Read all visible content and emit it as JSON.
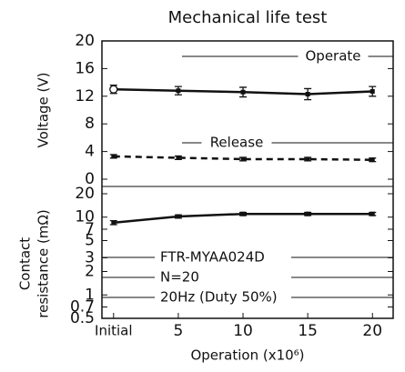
{
  "chart_data": [
    {
      "type": "line",
      "title": "Mechanical life test",
      "y_label": [
        "Voltage (V)"
      ],
      "x": [
        0,
        5,
        10,
        15,
        20
      ],
      "xlim": [
        -0.9,
        21.6
      ],
      "ylim": [
        0,
        20
      ],
      "yticks": [
        20,
        16,
        12,
        8,
        4,
        0
      ],
      "series": [
        {
          "name": "Operate",
          "color": "#111111",
          "dash": false,
          "values": [
            13.0,
            12.8,
            12.6,
            12.3,
            12.7
          ],
          "errors": [
            0.6,
            0.6,
            0.7,
            0.8,
            0.7
          ]
        },
        {
          "name": "Release",
          "color": "#111111",
          "dash": true,
          "values": [
            3.3,
            3.1,
            2.9,
            2.9,
            2.8
          ],
          "errors": [
            0.25,
            0.25,
            0.25,
            0.25,
            0.25
          ]
        }
      ]
    },
    {
      "type": "line",
      "y_label": [
        "Contact",
        "resistance (mΩ)"
      ],
      "x_label": "Operation (x10⁶)",
      "x": [
        0,
        5,
        10,
        15,
        20
      ],
      "xlim": [
        -0.9,
        21.6
      ],
      "xticks": [
        {
          "value": 0,
          "label": "Initial"
        },
        5,
        10,
        15,
        20
      ],
      "log_scale": true,
      "ylim": [
        0.5,
        20
      ],
      "yticks": [
        20,
        10,
        7,
        5,
        3,
        2,
        1,
        0.7,
        0.5
      ],
      "annotations": [
        "FTR-MYAA024D",
        "N=20",
        "20Hz (Duty 50%)"
      ],
      "series": [
        {
          "color": "#111111",
          "dash": false,
          "values": [
            8.5,
            10.2,
            11.0,
            11.0,
            11.0
          ],
          "errors": [
            0.5,
            0.5,
            0.5,
            0.5,
            0.5
          ]
        }
      ]
    }
  ]
}
